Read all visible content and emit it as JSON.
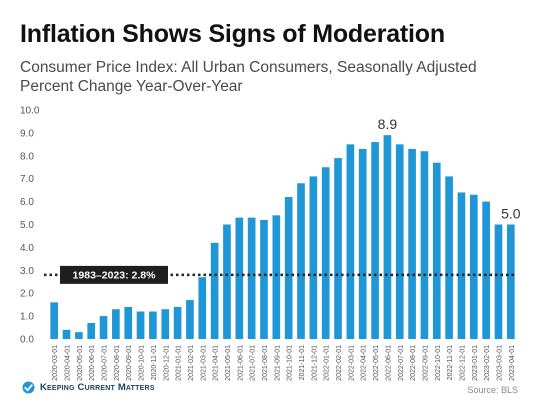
{
  "header": {
    "title": "Inflation Shows Signs of Moderation",
    "subtitle_line1": "Consumer Price Index: All Urban Consumers, Seasonally Adjusted",
    "subtitle_line2": "Percent Change Year-Over-Year"
  },
  "footer": {
    "brand": "Keeping Current Matters",
    "source": "Source: BLS"
  },
  "colors": {
    "bar": "#1f97d6",
    "reference_line": "#222222",
    "label_bg": "#1e1e1e",
    "label_text": "#ffffff",
    "tick_text": "#555555",
    "brand": "#1a3f6b"
  },
  "chart_data": {
    "type": "bar",
    "categories": [
      "2020-03-01",
      "2020-04-01",
      "2020-05-01",
      "2020-06-01",
      "2020-07-01",
      "2020-08-01",
      "2020-09-01",
      "2020-10-01",
      "2020-11-01",
      "2020-12-01",
      "2021-01-01",
      "2021-02-01",
      "2021-03-01",
      "2021-04-01",
      "2021-05-01",
      "2021-06-01",
      "2021-07-01",
      "2021-08-01",
      "2021-09-01",
      "2021-10-01",
      "2021-11-01",
      "2021-12-01",
      "2022-01-01",
      "2022-02-01",
      "2022-03-01",
      "2022-04-01",
      "2022-05-01",
      "2022-06-01",
      "2022-07-01",
      "2022-08-01",
      "2022-09-01",
      "2022-10-01",
      "2022-11-01",
      "2022-12-01",
      "2023-01-01",
      "2023-02-01",
      "2023-03-01",
      "2023-04-01"
    ],
    "values": [
      1.6,
      0.4,
      0.3,
      0.7,
      1.0,
      1.3,
      1.4,
      1.2,
      1.2,
      1.3,
      1.4,
      1.7,
      2.7,
      4.2,
      5.0,
      5.3,
      5.3,
      5.2,
      5.4,
      6.2,
      6.8,
      7.1,
      7.5,
      7.9,
      8.5,
      8.3,
      8.6,
      8.9,
      8.5,
      8.3,
      8.2,
      7.7,
      7.1,
      6.4,
      6.3,
      6.0,
      5.0,
      5.0
    ],
    "ylim": [
      0,
      10
    ],
    "yticks": [
      "0.0",
      "1.0",
      "2.0",
      "3.0",
      "4.0",
      "5.0",
      "6.0",
      "7.0",
      "8.0",
      "9.0",
      "10.0"
    ],
    "grid": false,
    "reference_line": {
      "value": 2.8,
      "label": "1983–2023: 2.8%"
    },
    "data_labels": [
      {
        "category": "2022-06-01",
        "text": "8.9"
      },
      {
        "category": "2023-04-01",
        "text": "5.0"
      }
    ]
  }
}
